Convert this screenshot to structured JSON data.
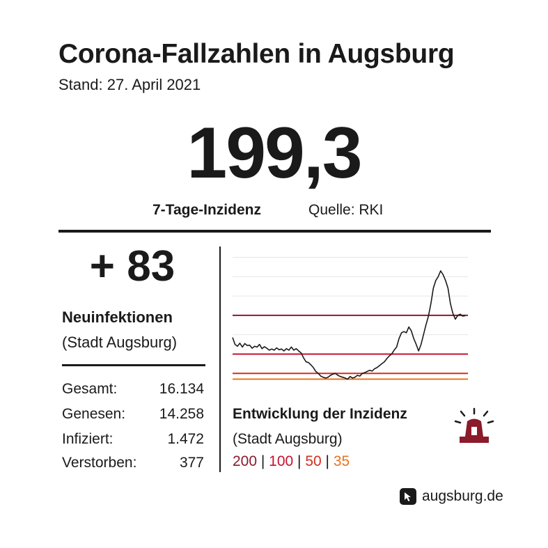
{
  "header": {
    "title": "Corona-Fallzahlen in Augsburg",
    "subtitle": "Stand: 27. April 2021"
  },
  "headline": {
    "value": "199,3",
    "label": "7-Tage-Inzidenz",
    "source": "Quelle: RKI"
  },
  "new_infections": {
    "value": "+ 83",
    "label": "Neuinfektionen",
    "sublabel": "(Stadt Augsburg)"
  },
  "stats": [
    {
      "label": "Gesamt:",
      "value": "16.134"
    },
    {
      "label": "Genesen:",
      "value": "14.258"
    },
    {
      "label": "Infiziert:",
      "value": "1.472"
    },
    {
      "label": "Verstorben:",
      "value": "377"
    }
  ],
  "chart": {
    "title": "Entwicklung der Inzidenz",
    "subtitle": "(Stadt Augsburg)",
    "legend": [
      {
        "text": "200",
        "color": "#8b1a2b"
      },
      {
        "text": "100",
        "color": "#c8102e"
      },
      {
        "text": "50",
        "color": "#d42d1f"
      },
      {
        "text": "35",
        "color": "#e8741e"
      }
    ],
    "separator": " | ",
    "icon": "siren-icon"
  },
  "chart_data": {
    "type": "line",
    "title": "Entwicklung der Inzidenz",
    "subtitle": "(Stadt Augsburg)",
    "xlabel": "",
    "ylabel": "",
    "ylim": [
      0,
      360
    ],
    "grid": true,
    "legend_position": "below",
    "thresholds": [
      {
        "value": 200,
        "color": "#8b1a2b"
      },
      {
        "value": 100,
        "color": "#c8102e"
      },
      {
        "value": 50,
        "color": "#d42d1f"
      },
      {
        "value": 35,
        "color": "#e8741e"
      }
    ],
    "series": [
      {
        "color": "#1a1a1a",
        "values": [
          143,
          125,
          120,
          128,
          118,
          127,
          122,
          123,
          115,
          120,
          118,
          125,
          114,
          119,
          115,
          110,
          113,
          110,
          116,
          111,
          113,
          108,
          114,
          110,
          118,
          110,
          114,
          108,
          103,
          90,
          80,
          78,
          72,
          65,
          55,
          50,
          43,
          40,
          38,
          40,
          45,
          48,
          50,
          45,
          42,
          40,
          38,
          35,
          42,
          38,
          40,
          45,
          43,
          50,
          52,
          55,
          58,
          56,
          62,
          65,
          70,
          75,
          80,
          88,
          95,
          100,
          110,
          118,
          140,
          155,
          158,
          155,
          170,
          160,
          140,
          125,
          108,
          125,
          150,
          175,
          198,
          230,
          270,
          290,
          300,
          315,
          305,
          290,
          270,
          230,
          205,
          190,
          200,
          203,
          198,
          199
        ]
      }
    ]
  },
  "brand": {
    "text": "augsburg.de",
    "icon": "cursor-icon"
  }
}
